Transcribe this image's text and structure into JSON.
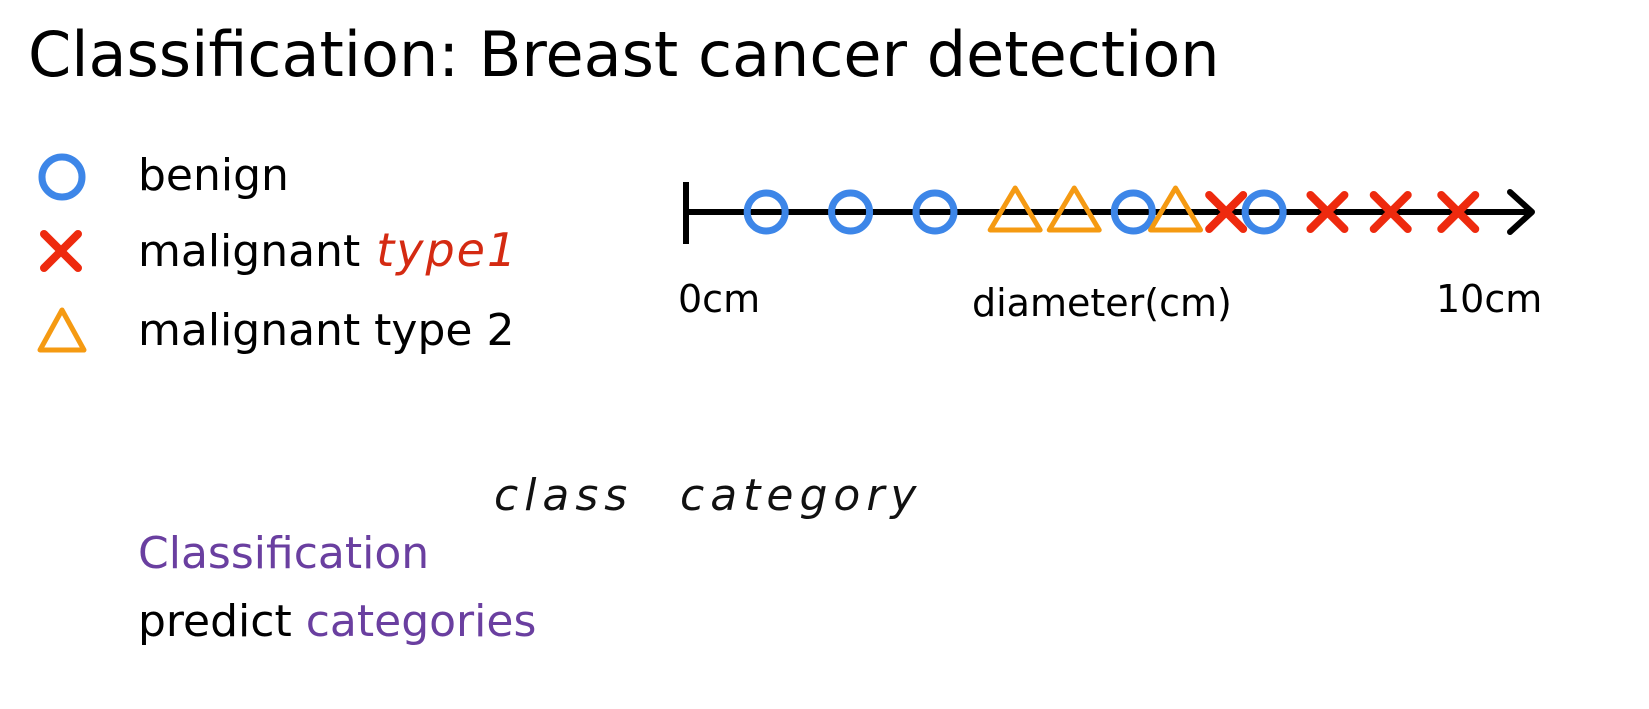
{
  "title": "Classification: Breast cancer detection",
  "legend": {
    "benign": "benign",
    "malignant1": "malignant",
    "malignant1_note": "type1",
    "malignant2": "malignant type 2"
  },
  "colors": {
    "benign": "#3d86e8",
    "malignant_type1": "#ee2a0e",
    "malignant_type2": "#f59a12",
    "accent_text": "#6a3fa0",
    "note_red": "#d42a12"
  },
  "chart_data": {
    "type": "scatter",
    "xlabel": "diameter(cm)",
    "tick_labels": [
      "0cm",
      "10cm"
    ],
    "xlim": [
      0,
      10
    ],
    "series": [
      {
        "name": "benign",
        "marker": "circle",
        "x": [
          0.95,
          1.95,
          2.95,
          5.3,
          6.85
        ]
      },
      {
        "name": "malignant type1",
        "marker": "x",
        "x": [
          6.4,
          7.6,
          8.35,
          9.15
        ]
      },
      {
        "name": "malignant type 2",
        "marker": "triangle",
        "x": [
          3.9,
          4.6,
          5.8
        ]
      }
    ]
  },
  "annotations": {
    "class_word": "class",
    "category_word": "category"
  },
  "bottom": {
    "classification": "Classification",
    "predict": "predict",
    "categories": "categories"
  }
}
